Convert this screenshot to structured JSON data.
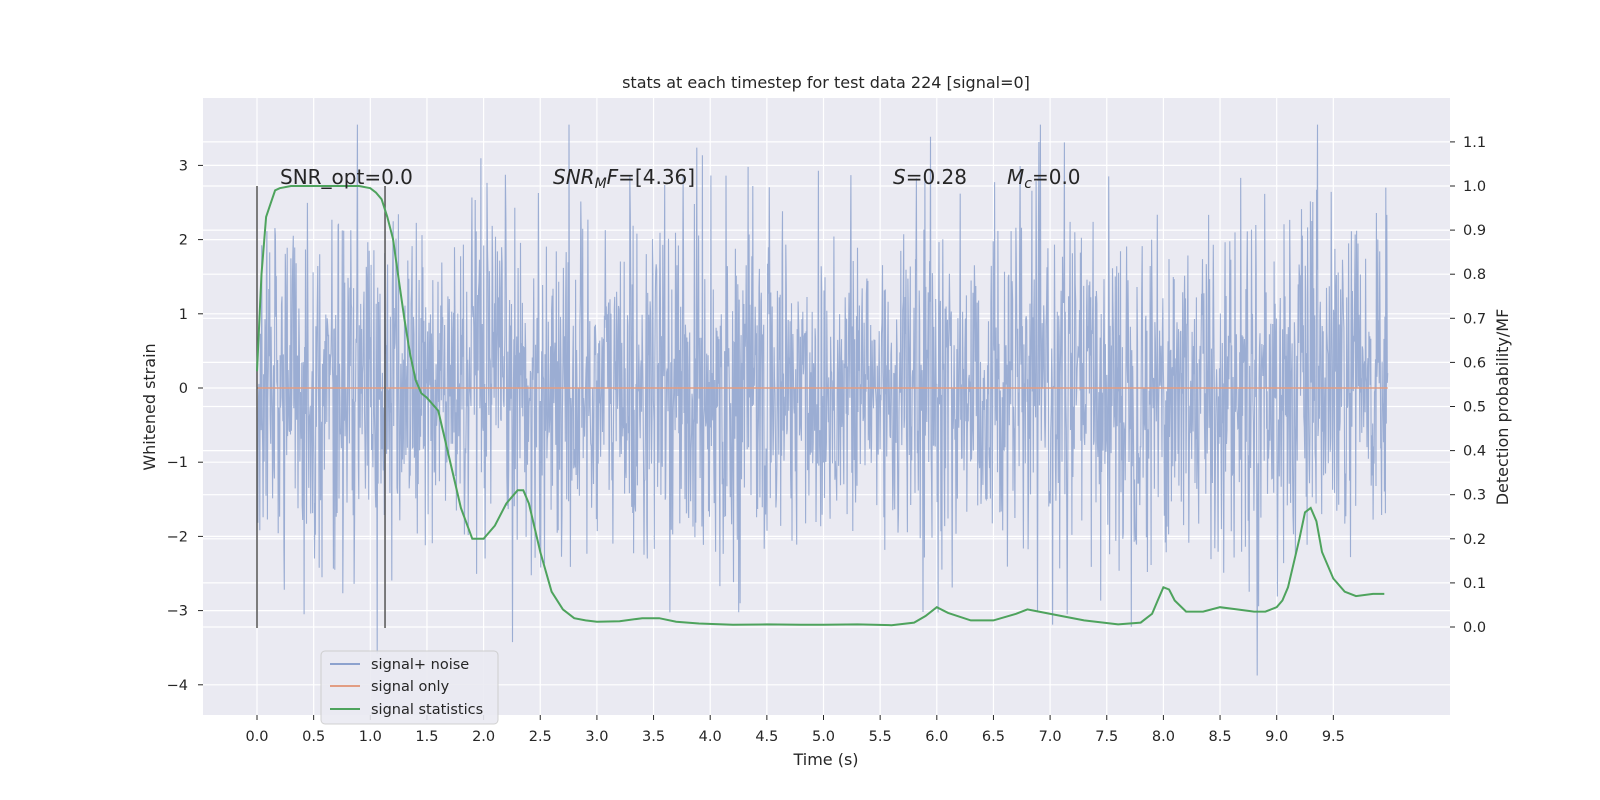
{
  "chart_data": {
    "type": "line",
    "title": "stats at each timestep for test data 224 [signal=0]",
    "xlabel": "Time (s)",
    "ylabel": "Whitened strain",
    "ylabel_right": "Detection probability/MF",
    "xlim": [
      -0.5,
      10.5
    ],
    "ylim": [
      -4.5,
      3.9
    ],
    "ylim_right": [
      -0.2,
      1.2
    ],
    "x_ticks": [
      "0.0",
      "0.5",
      "1.0",
      "1.5",
      "2.0",
      "2.5",
      "3.0",
      "3.5",
      "4.0",
      "4.5",
      "5.0",
      "5.5",
      "6.0",
      "6.5",
      "7.0",
      "7.5",
      "8.0",
      "8.5",
      "9.0",
      "9.5"
    ],
    "y_ticks": [
      "3",
      "2",
      "1",
      "0",
      "−1",
      "−2",
      "−3",
      "−4"
    ],
    "y_ticks_right": [
      "1.1",
      "1.0",
      "0.9",
      "0.8",
      "0.7",
      "0.6",
      "0.5",
      "0.4",
      "0.3",
      "0.2",
      "0.1",
      "0.0"
    ],
    "grid": true,
    "legend_position": "lower-left",
    "annotations": {
      "snr_opt": "SNR_opt=0.0",
      "snr_mf_prefix": "SNR",
      "snr_mf_sub": "M",
      "snr_mf_rest": "F=[4.36]",
      "s_italic": "S",
      "s_rest": "=0.28",
      "mc_italic": "M",
      "mc_sub": "c",
      "mc_rest": "=0.0"
    },
    "window_markers_x": [
      0.0,
      1.13
    ],
    "series": [
      {
        "name": "signal+ noise",
        "color": "#8da2ce",
        "axis": "left",
        "description_range": [
          0.0,
          9.98
        ],
        "typical_amplitude": 1.2,
        "max": 3.55,
        "min": -4.05
      },
      {
        "name": "signal only",
        "color": "#e29d83",
        "axis": "left",
        "x": [
          0.0,
          9.98
        ],
        "y": [
          0.0,
          0.0
        ]
      },
      {
        "name": "signal statistics",
        "color": "#4ea35d",
        "axis": "right",
        "x": [
          0.0,
          0.04,
          0.08,
          0.12,
          0.16,
          0.2,
          0.3,
          0.4,
          0.5,
          0.6,
          0.7,
          0.8,
          0.9,
          1.0,
          1.05,
          1.1,
          1.15,
          1.2,
          1.25,
          1.3,
          1.35,
          1.4,
          1.45,
          1.5,
          1.6,
          1.7,
          1.8,
          1.9,
          2.0,
          2.1,
          2.2,
          2.3,
          2.35,
          2.4,
          2.5,
          2.6,
          2.7,
          2.8,
          2.9,
          3.0,
          3.2,
          3.4,
          3.55,
          3.7,
          3.9,
          4.2,
          4.5,
          4.8,
          5.0,
          5.3,
          5.6,
          5.8,
          5.9,
          6.0,
          6.1,
          6.3,
          6.5,
          6.7,
          6.8,
          6.9,
          7.1,
          7.3,
          7.6,
          7.8,
          7.9,
          7.95,
          8.0,
          8.05,
          8.1,
          8.2,
          8.35,
          8.5,
          8.65,
          8.8,
          8.9,
          9.0,
          9.05,
          9.1,
          9.2,
          9.25,
          9.3,
          9.35,
          9.4,
          9.5,
          9.6,
          9.7,
          9.85,
          9.95
        ],
        "y": [
          0.58,
          0.8,
          0.93,
          0.96,
          0.99,
          0.995,
          1.0,
          1.0,
          1.0,
          1.0,
          1.0,
          1.0,
          1.0,
          0.995,
          0.985,
          0.97,
          0.93,
          0.88,
          0.79,
          0.7,
          0.62,
          0.56,
          0.53,
          0.52,
          0.49,
          0.38,
          0.27,
          0.2,
          0.2,
          0.23,
          0.28,
          0.31,
          0.31,
          0.28,
          0.17,
          0.08,
          0.04,
          0.02,
          0.015,
          0.012,
          0.013,
          0.02,
          0.02,
          0.012,
          0.008,
          0.005,
          0.006,
          0.005,
          0.005,
          0.006,
          0.004,
          0.01,
          0.025,
          0.045,
          0.032,
          0.015,
          0.015,
          0.03,
          0.04,
          0.035,
          0.025,
          0.015,
          0.006,
          0.01,
          0.03,
          0.06,
          0.09,
          0.085,
          0.06,
          0.035,
          0.035,
          0.045,
          0.04,
          0.035,
          0.035,
          0.045,
          0.06,
          0.09,
          0.2,
          0.26,
          0.27,
          0.24,
          0.17,
          0.11,
          0.08,
          0.07,
          0.075,
          0.075
        ]
      }
    ]
  }
}
